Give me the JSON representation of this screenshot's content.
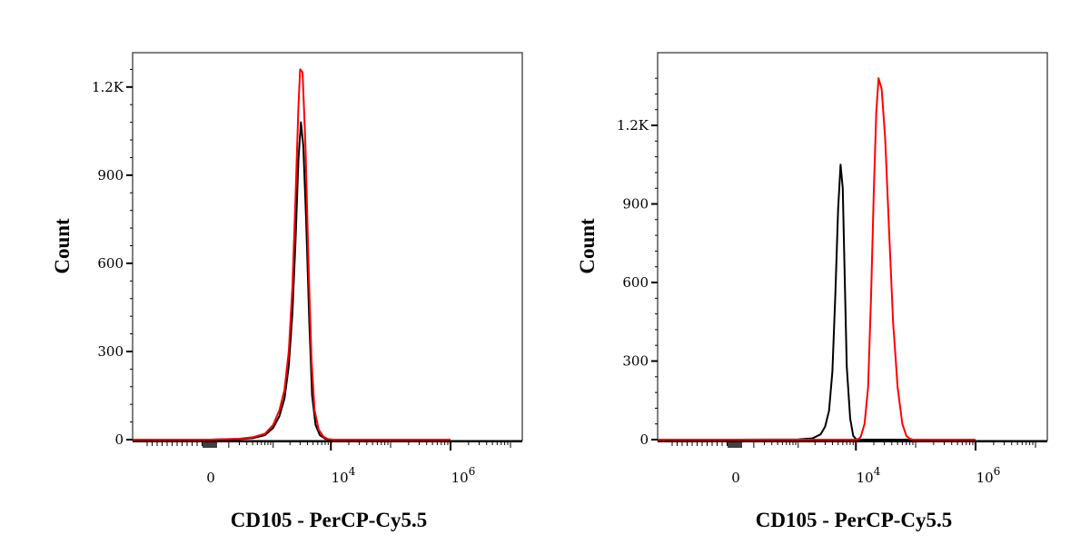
{
  "chart_data": [
    {
      "type": "line",
      "xlabel": "CD105 - PerCP-Cy5.5",
      "ylabel": "Count",
      "x_scale": "biexponential",
      "x_ticks": [
        {
          "value": 0,
          "label": "0"
        },
        {
          "value": 10000,
          "base": "10",
          "exp": "4"
        },
        {
          "value": 1000000,
          "base": "10",
          "exp": "6"
        }
      ],
      "y_ticks": [
        {
          "value": 0,
          "label": "0"
        },
        {
          "value": 300,
          "label": "300"
        },
        {
          "value": 600,
          "label": "600"
        },
        {
          "value": 900,
          "label": "900"
        },
        {
          "value": 1200,
          "label": "1.2K"
        }
      ],
      "ylim": [
        0,
        1260
      ],
      "series": [
        {
          "color": "#000000",
          "values": [
            [
              0,
              0
            ],
            [
              200,
              2
            ],
            [
              400,
              5
            ],
            [
              700,
              15
            ],
            [
              1000,
              40
            ],
            [
              1300,
              80
            ],
            [
              1600,
              140
            ],
            [
              1900,
              250
            ],
            [
              2200,
              430
            ],
            [
              2500,
              680
            ],
            [
              2800,
              950
            ],
            [
              3100,
              1080
            ],
            [
              3400,
              1000
            ],
            [
              3800,
              750
            ],
            [
              4300,
              400
            ],
            [
              4800,
              150
            ],
            [
              5500,
              50
            ],
            [
              6500,
              15
            ],
            [
              8000,
              3
            ],
            [
              10000,
              0
            ],
            [
              1000000,
              0
            ]
          ]
        },
        {
          "color": "#ff0000",
          "values": [
            [
              0,
              0
            ],
            [
              200,
              3
            ],
            [
              400,
              8
            ],
            [
              700,
              20
            ],
            [
              1000,
              50
            ],
            [
              1300,
              100
            ],
            [
              1600,
              170
            ],
            [
              1900,
              300
            ],
            [
              2200,
              520
            ],
            [
              2500,
              830
            ],
            [
              2800,
              1130
            ],
            [
              3000,
              1260
            ],
            [
              3300,
              1250
            ],
            [
              3700,
              1000
            ],
            [
              4200,
              580
            ],
            [
              4700,
              270
            ],
            [
              5300,
              100
            ],
            [
              6200,
              35
            ],
            [
              7500,
              10
            ],
            [
              9000,
              2
            ],
            [
              11000,
              0
            ],
            [
              1000000,
              0
            ]
          ]
        }
      ]
    },
    {
      "type": "line",
      "xlabel": "CD105 - PerCP-Cy5.5",
      "ylabel": "Count",
      "x_scale": "biexponential",
      "x_ticks": [
        {
          "value": 0,
          "label": "0"
        },
        {
          "value": 10000,
          "base": "10",
          "exp": "4"
        },
        {
          "value": 1000000,
          "base": "10",
          "exp": "6"
        }
      ],
      "y_ticks": [
        {
          "value": 0,
          "label": "0"
        },
        {
          "value": 300,
          "label": "300"
        },
        {
          "value": 600,
          "label": "600"
        },
        {
          "value": 900,
          "label": "900"
        },
        {
          "value": 1200,
          "label": "1.2K"
        }
      ],
      "ylim": [
        0,
        1380
      ],
      "series": [
        {
          "color": "#000000",
          "values": [
            [
              0,
              0
            ],
            [
              1000,
              1
            ],
            [
              1800,
              5
            ],
            [
              2500,
              20
            ],
            [
              3000,
              50
            ],
            [
              3500,
              110
            ],
            [
              4000,
              260
            ],
            [
              4500,
              560
            ],
            [
              5000,
              880
            ],
            [
              5500,
              1050
            ],
            [
              6000,
              960
            ],
            [
              6500,
              600
            ],
            [
              7000,
              280
            ],
            [
              8000,
              80
            ],
            [
              9000,
              15
            ],
            [
              10000,
              2
            ],
            [
              12000,
              0
            ],
            [
              1000000,
              0
            ]
          ]
        },
        {
          "color": "#ff0000",
          "values": [
            [
              0,
              0
            ],
            [
              10000,
              0
            ],
            [
              11000,
              2
            ],
            [
              12000,
              10
            ],
            [
              14000,
              60
            ],
            [
              16000,
              200
            ],
            [
              18000,
              550
            ],
            [
              20000,
              950
            ],
            [
              22000,
              1250
            ],
            [
              24000,
              1380
            ],
            [
              27000,
              1340
            ],
            [
              31000,
              1150
            ],
            [
              36000,
              800
            ],
            [
              42000,
              450
            ],
            [
              50000,
              200
            ],
            [
              60000,
              60
            ],
            [
              70000,
              15
            ],
            [
              80000,
              3
            ],
            [
              90000,
              0
            ],
            [
              1000000,
              0
            ]
          ]
        }
      ]
    }
  ]
}
